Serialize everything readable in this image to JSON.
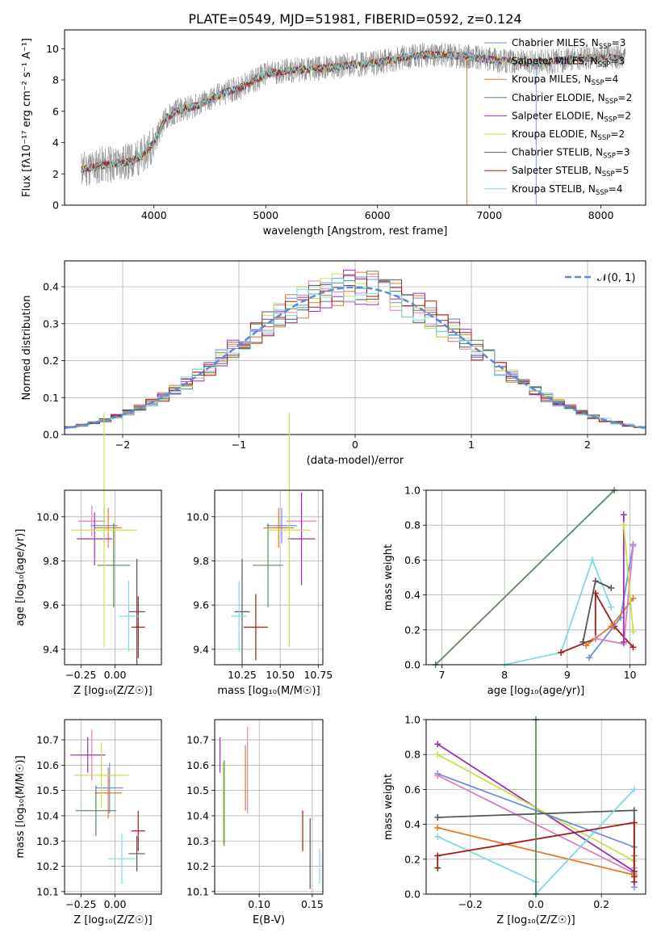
{
  "figure": {
    "title": "PLATE=0549, MJD=51981, FIBERID=0592, z=0.124"
  },
  "colors": {
    "chabrier_miles": "#6f8fdd",
    "salpeter_miles": "#e07fc0",
    "kroupa_miles": "#e07a2a",
    "chabrier_elodie": "#5a8a5f",
    "salpeter_elodie": "#9b30b5",
    "kroupa_elodie": "#c8e04a",
    "chabrier_stelib": "#555555",
    "salpeter_stelib": "#a11b1b",
    "kroupa_stelib": "#7fd9e3",
    "data": "#888888",
    "normal": "#5c8ad6"
  },
  "chart_data": [
    {
      "id": "spectrum",
      "type": "line",
      "title": "PLATE=0549, MJD=51981, FIBERID=0592, z=0.124",
      "xlabel": "wavelength [Angstrom, rest frame]",
      "ylabel": "Flux [fλ10⁻¹⁷ erg cm⁻² s⁻¹ A⁻¹]",
      "xlim": [
        3200,
        8400
      ],
      "ylim": [
        0,
        11.2
      ],
      "xticks": [
        4000,
        5000,
        6000,
        7000,
        8000
      ],
      "yticks": [
        0,
        2,
        4,
        6,
        8,
        10
      ],
      "legend_position": "top-right",
      "legend": [
        {
          "key": "chabrier_miles",
          "label": "Chabrier MILES, N",
          "sub": "SSP",
          "tail": "=3"
        },
        {
          "key": "salpeter_miles",
          "label": "Salpeter MILES, N",
          "sub": "SSP",
          "tail": "=3"
        },
        {
          "key": "kroupa_miles",
          "label": "Kroupa MILES, N",
          "sub": "SSP",
          "tail": "=4"
        },
        {
          "key": "chabrier_elodie",
          "label": "Chabrier ELODIE, N",
          "sub": "SSP",
          "tail": "=2"
        },
        {
          "key": "salpeter_elodie",
          "label": "Salpeter ELODIE, N",
          "sub": "SSP",
          "tail": "=2"
        },
        {
          "key": "kroupa_elodie",
          "label": "Kroupa ELODIE, N",
          "sub": "SSP",
          "tail": "=2"
        },
        {
          "key": "chabrier_stelib",
          "label": "Chabrier STELIB, N",
          "sub": "SSP",
          "tail": "=3"
        },
        {
          "key": "salpeter_stelib",
          "label": "Salpeter STELIB, N",
          "sub": "SSP",
          "tail": "=5"
        },
        {
          "key": "kroupa_stelib",
          "label": "Kroupa STELIB, N",
          "sub": "SSP",
          "tail": "=4"
        }
      ],
      "continuum": {
        "x": [
          3350,
          3500,
          3700,
          3800,
          3900,
          4000,
          4100,
          4200,
          4400,
          4600,
          4800,
          5000,
          5200,
          5400,
          5600,
          5800,
          6000,
          6200,
          6400,
          6600,
          6800,
          7000,
          7200,
          7400,
          7600,
          7800,
          8000,
          8200
        ],
        "y": [
          2.3,
          2.5,
          2.7,
          2.8,
          3.2,
          4.0,
          5.5,
          6.0,
          6.4,
          7.1,
          7.6,
          8.4,
          8.6,
          8.7,
          8.8,
          9.0,
          9.1,
          9.4,
          9.6,
          9.6,
          9.5,
          9.3,
          9.2,
          9.1,
          9.2,
          9.4,
          9.4,
          9.5
        ]
      }
    },
    {
      "id": "residuals",
      "type": "histogram",
      "xlabel": "(data-model)/error",
      "ylabel": "Normed distribution",
      "xlim": [
        -2.5,
        2.5
      ],
      "ylim": [
        0,
        0.47
      ],
      "xticks": [
        -2,
        -1,
        0,
        1,
        2
      ],
      "yticks": [
        0.0,
        0.1,
        0.2,
        0.3,
        0.4
      ],
      "legend_position": "top-right",
      "normal_label": "𝒩(0, 1)",
      "bin_width": 0.1
    },
    {
      "id": "age_vs_Z",
      "type": "scatter",
      "xlabel": "Z [log₁₀(Z/Z☉)]",
      "ylabel": "age  [log₁₀(age/yr)]",
      "xlim": [
        -0.37,
        0.34
      ],
      "ylim": [
        9.33,
        10.12
      ],
      "xticks": [
        -0.25,
        0.0
      ],
      "yticks": [
        9.4,
        9.6,
        9.8,
        10.0
      ],
      "points": [
        {
          "key": "chabrier_miles",
          "x": -0.08,
          "y": 9.96,
          "dx": 0.1,
          "dy": 0.08
        },
        {
          "key": "salpeter_miles",
          "x": -0.17,
          "y": 9.98,
          "dx": 0.1,
          "dy": 0.07
        },
        {
          "key": "kroupa_miles",
          "x": -0.05,
          "y": 9.95,
          "dx": 0.1,
          "dy": 0.09
        },
        {
          "key": "chabrier_elodie",
          "x": -0.01,
          "y": 9.78,
          "dx": 0.12,
          "dy": 0.19
        },
        {
          "key": "salpeter_elodie",
          "x": -0.15,
          "y": 9.9,
          "dx": 0.13,
          "dy": 0.12
        },
        {
          "key": "kroupa_elodie",
          "x": -0.08,
          "y": 9.94,
          "dx": 0.24,
          "dy": 0.53
        },
        {
          "key": "chabrier_stelib",
          "x": 0.16,
          "y": 9.57,
          "dx": 0.06,
          "dy": 0.24
        },
        {
          "key": "salpeter_stelib",
          "x": 0.17,
          "y": 9.5,
          "dx": 0.05,
          "dy": 0.14
        },
        {
          "key": "kroupa_stelib",
          "x": 0.1,
          "y": 9.55,
          "dx": 0.07,
          "dy": 0.16
        }
      ]
    },
    {
      "id": "age_vs_mass",
      "type": "scatter",
      "xlabel": "mass [log₁₀(M/M☉)]",
      "ylabel": "",
      "xlim": [
        10.07,
        10.78
      ],
      "ylim": [
        9.33,
        10.12
      ],
      "xticks": [
        10.25,
        10.5,
        10.75
      ],
      "yticks": [
        9.4,
        9.6,
        9.8,
        10.0
      ],
      "points": [
        {
          "key": "chabrier_miles",
          "x": 10.51,
          "y": 9.96,
          "dx": 0.1,
          "dy": 0.08
        },
        {
          "key": "salpeter_miles",
          "x": 10.64,
          "y": 9.98,
          "dx": 0.1,
          "dy": 0.07
        },
        {
          "key": "kroupa_miles",
          "x": 10.49,
          "y": 9.95,
          "dx": 0.1,
          "dy": 0.09
        },
        {
          "key": "chabrier_elodie",
          "x": 10.42,
          "y": 9.78,
          "dx": 0.1,
          "dy": 0.19
        },
        {
          "key": "salpeter_elodie",
          "x": 10.64,
          "y": 9.9,
          "dx": 0.09,
          "dy": 0.21
        },
        {
          "key": "kroupa_elodie",
          "x": 10.56,
          "y": 9.94,
          "dx": 0.14,
          "dy": 0.53
        },
        {
          "key": "chabrier_stelib",
          "x": 10.25,
          "y": 9.57,
          "dx": 0.05,
          "dy": 0.24
        },
        {
          "key": "salpeter_stelib",
          "x": 10.34,
          "y": 9.5,
          "dx": 0.08,
          "dy": 0.15
        },
        {
          "key": "kroupa_stelib",
          "x": 10.23,
          "y": 9.55,
          "dx": 0.05,
          "dy": 0.16
        }
      ]
    },
    {
      "id": "weight_vs_age",
      "type": "line",
      "xlabel": "age  [log₁₀(age/yr)]",
      "ylabel": "mass weight",
      "xlim": [
        6.75,
        10.25
      ],
      "ylim": [
        0,
        1.0
      ],
      "xticks": [
        7,
        8,
        9,
        10
      ],
      "yticks": [
        0.0,
        0.2,
        0.4,
        0.6,
        0.8,
        1.0
      ],
      "series": [
        {
          "key": "chabrier_elodie",
          "x": [
            6.9,
            9.75
          ],
          "y": [
            0.0,
            1.0
          ]
        },
        {
          "key": "kroupa_stelib",
          "x": [
            8.0,
            8.9,
            9.4,
            9.7
          ],
          "y": [
            0.0,
            0.07,
            0.6,
            0.33
          ]
        },
        {
          "key": "salpeter_stelib",
          "x": [
            8.9,
            9.45,
            9.45,
            9.75,
            10.05
          ],
          "y": [
            0.07,
            0.15,
            0.41,
            0.22,
            0.1
          ]
        },
        {
          "key": "chabrier_stelib",
          "x": [
            9.25,
            9.45,
            9.7
          ],
          "y": [
            0.13,
            0.48,
            0.44
          ]
        },
        {
          "key": "chabrier_miles",
          "x": [
            9.35,
            9.85,
            10.05
          ],
          "y": [
            0.04,
            0.27,
            0.69
          ]
        },
        {
          "key": "kroupa_miles",
          "x": [
            9.3,
            9.7,
            10.05
          ],
          "y": [
            0.11,
            0.22,
            0.38
          ]
        },
        {
          "key": "salpeter_miles",
          "x": [
            9.45,
            9.9,
            10.05
          ],
          "y": [
            0.15,
            0.12,
            0.68
          ]
        },
        {
          "key": "salpeter_elodie",
          "x": [
            9.9,
            9.9
          ],
          "y": [
            0.86,
            0.13
          ]
        },
        {
          "key": "kroupa_elodie",
          "x": [
            9.9,
            10.05
          ],
          "y": [
            0.8,
            0.19
          ]
        }
      ]
    },
    {
      "id": "mass_vs_Z",
      "type": "scatter",
      "xlabel": "Z [log₁₀(Z/Z☉)]",
      "ylabel": "mass [log₁₀(M/M☉)]",
      "xlim": [
        -0.37,
        0.34
      ],
      "ylim": [
        10.09,
        10.78
      ],
      "xticks": [
        -0.25,
        0.0
      ],
      "yticks": [
        10.1,
        10.2,
        10.3,
        10.4,
        10.5,
        10.6,
        10.7
      ],
      "points": [
        {
          "key": "chabrier_miles",
          "x": -0.04,
          "y": 10.51,
          "dx": 0.1,
          "dy": 0.1
        },
        {
          "key": "salpeter_miles",
          "x": -0.17,
          "y": 10.64,
          "dx": 0.1,
          "dy": 0.1
        },
        {
          "key": "kroupa_miles",
          "x": -0.05,
          "y": 10.49,
          "dx": 0.1,
          "dy": 0.1
        },
        {
          "key": "chabrier_elodie",
          "x": -0.14,
          "y": 10.42,
          "dx": 0.15,
          "dy": 0.1
        },
        {
          "key": "salpeter_elodie",
          "x": -0.2,
          "y": 10.64,
          "dx": 0.13,
          "dy": 0.07
        },
        {
          "key": "kroupa_elodie",
          "x": -0.1,
          "y": 10.56,
          "dx": 0.2,
          "dy": 0.13
        },
        {
          "key": "chabrier_stelib",
          "x": 0.16,
          "y": 10.25,
          "dx": 0.06,
          "dy": 0.07
        },
        {
          "key": "salpeter_stelib",
          "x": 0.17,
          "y": 10.34,
          "dx": 0.05,
          "dy": 0.08
        },
        {
          "key": "kroupa_stelib",
          "x": 0.05,
          "y": 10.23,
          "dx": 0.1,
          "dy": 0.1
        }
      ]
    },
    {
      "id": "mass_vs_ebv",
      "type": "scatter",
      "xlabel": "E(B-V)",
      "ylabel": "",
      "xlim": [
        0.058,
        0.16
      ],
      "ylim": [
        10.09,
        10.78
      ],
      "xticks": [
        0.1,
        0.15
      ],
      "yticks": [
        10.1,
        10.2,
        10.3,
        10.4,
        10.5,
        10.6,
        10.7
      ],
      "points": [
        {
          "key": "salpeter_elodie",
          "x": 0.063,
          "y": 10.64,
          "dy": 0.07
        },
        {
          "key": "kroupa_elodie",
          "x": 0.066,
          "y": 10.45,
          "dy": 0.16
        },
        {
          "key": "chabrier_elodie",
          "x": 0.067,
          "y": 10.45,
          "dy": 0.17
        },
        {
          "key": "kroupa_miles",
          "x": 0.087,
          "y": 10.55,
          "dy": 0.13
        },
        {
          "key": "salpeter_miles",
          "x": 0.089,
          "y": 10.58,
          "dy": 0.17
        },
        {
          "key": "salpeter_stelib",
          "x": 0.141,
          "y": 10.34,
          "dy": 0.08
        },
        {
          "key": "chabrier_stelib",
          "x": 0.148,
          "y": 10.25,
          "dy": 0.14
        },
        {
          "key": "kroupa_stelib",
          "x": 0.157,
          "y": 10.2,
          "dy": 0.07
        }
      ]
    },
    {
      "id": "weight_vs_Z",
      "type": "line",
      "xlabel": "Z [log₁₀(Z/Z☉)]",
      "ylabel": "mass weight",
      "xlim": [
        -0.335,
        0.335
      ],
      "ylim": [
        0,
        1.0
      ],
      "xticks": [
        -0.2,
        0.0,
        0.2
      ],
      "yticks": [
        0.0,
        0.2,
        0.4,
        0.6,
        0.8,
        1.0
      ],
      "series": [
        {
          "key": "salpeter_elodie",
          "x": [
            -0.3,
            0.3
          ],
          "y": [
            0.86,
            0.13
          ]
        },
        {
          "key": "kroupa_elodie",
          "x": [
            -0.3,
            0.3
          ],
          "y": [
            0.8,
            0.19
          ]
        },
        {
          "key": "chabrier_miles",
          "x": [
            -0.3,
            0.3,
            0.3
          ],
          "y": [
            0.69,
            0.27,
            0.04
          ]
        },
        {
          "key": "salpeter_miles",
          "x": [
            -0.3,
            0.3,
            0.3
          ],
          "y": [
            0.68,
            0.12,
            0.15
          ]
        },
        {
          "key": "chabrier_stelib",
          "x": [
            -0.3,
            0.3,
            0.3
          ],
          "y": [
            0.44,
            0.48,
            0.13
          ]
        },
        {
          "key": "kroupa_miles",
          "x": [
            -0.3,
            0.3,
            0.3
          ],
          "y": [
            0.38,
            0.11,
            0.22
          ]
        },
        {
          "key": "kroupa_stelib",
          "x": [
            -0.3,
            0.0,
            0.0,
            0.3
          ],
          "y": [
            0.33,
            0.07,
            0.0,
            0.6
          ]
        },
        {
          "key": "salpeter_stelib",
          "x": [
            -0.3,
            -0.3,
            0.3,
            0.3,
            0.3
          ],
          "y": [
            0.15,
            0.22,
            0.41,
            0.07,
            0.1
          ]
        },
        {
          "key": "chabrier_elodie",
          "x": [
            0.0,
            0.0
          ],
          "y": [
            0.0,
            1.0
          ]
        }
      ]
    }
  ]
}
